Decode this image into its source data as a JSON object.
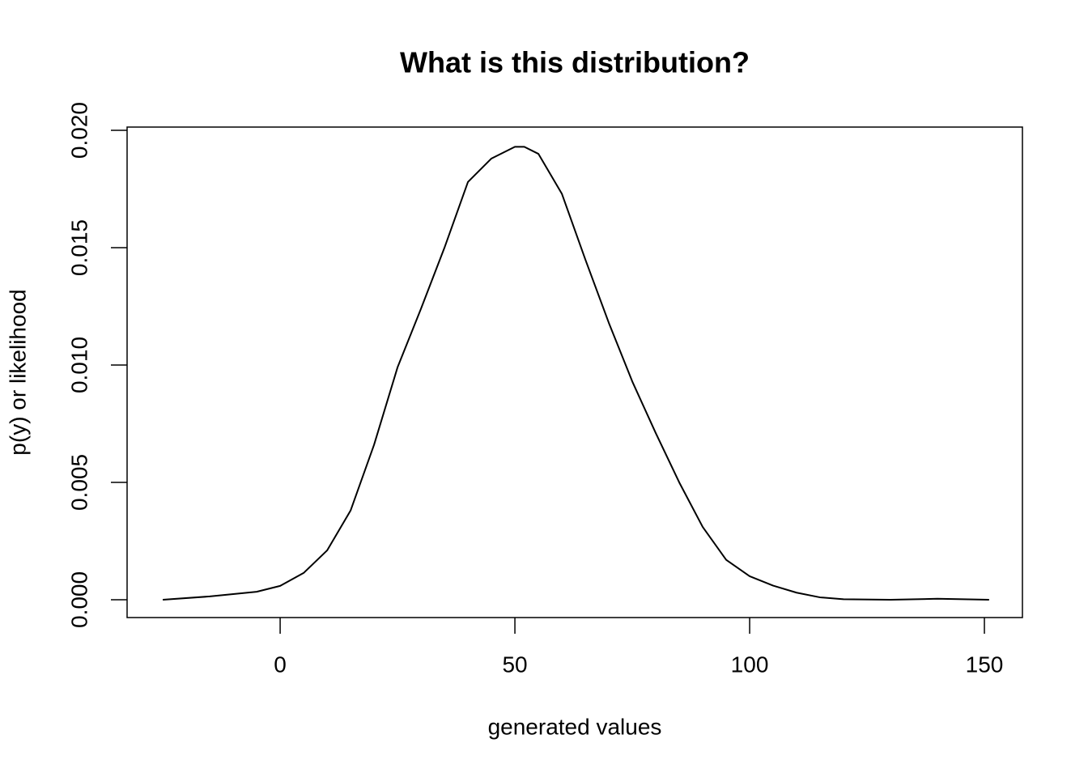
{
  "chart_data": {
    "type": "line",
    "title": "What is this distribution?",
    "xlabel": "generated values",
    "ylabel": "p(y) or likelihood",
    "x": [
      -25,
      -15,
      -5,
      0,
      5,
      10,
      15,
      20,
      25,
      30,
      35,
      40,
      45,
      50,
      52,
      55,
      60,
      65,
      70,
      75,
      80,
      85,
      90,
      95,
      100,
      105,
      110,
      115,
      120,
      130,
      140,
      151
    ],
    "series": [
      {
        "name": "density",
        "color": "#000000",
        "values": [
          0,
          0.00014,
          0.00034,
          0.00059,
          0.00114,
          0.0021,
          0.0038,
          0.0066,
          0.0099,
          0.0124,
          0.015,
          0.0178,
          0.0188,
          0.0193,
          0.0193,
          0.019,
          0.0173,
          0.0145,
          0.0118,
          0.0093,
          0.0071,
          0.005,
          0.0031,
          0.0017,
          0.001,
          0.0006,
          0.0003,
          0.0001,
          2e-05,
          0,
          4e-05,
          0
        ]
      }
    ],
    "xlim": [
      -32.6,
      158.1
    ],
    "ylim": [
      -0.00076,
      0.02014
    ],
    "xticks": [
      0,
      50,
      100,
      150
    ],
    "yticks": [
      {
        "value": 0,
        "label": "0.000"
      },
      0.005,
      {
        "value": 0.01,
        "label": "0.010"
      },
      0.015,
      {
        "value": 0.02,
        "label": "0.020"
      }
    ]
  }
}
